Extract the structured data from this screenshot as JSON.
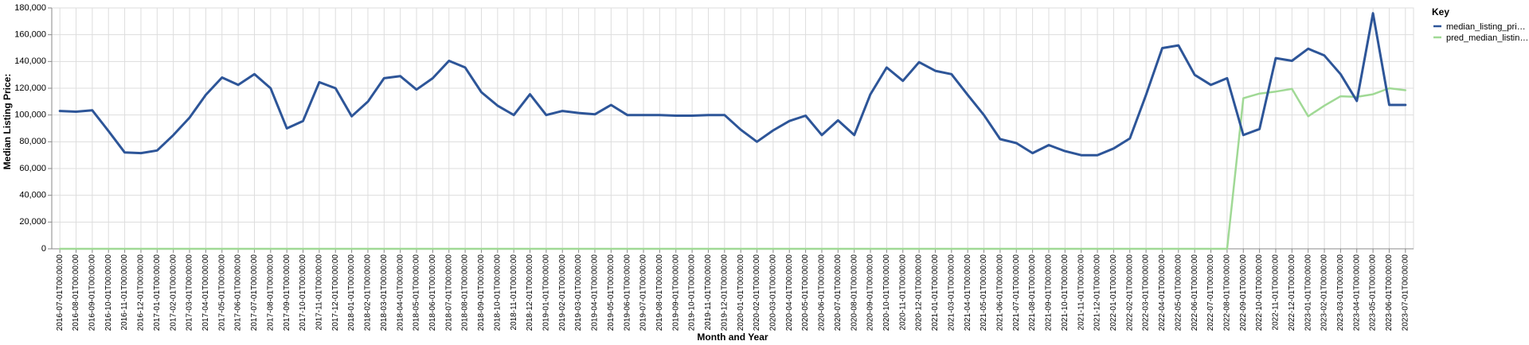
{
  "chart_data": {
    "type": "line",
    "xlabel": "Month and Year",
    "ylabel": "Median Listing Price:",
    "ylim": [
      0,
      180000
    ],
    "y_ticks": [
      0,
      20000,
      40000,
      60000,
      80000,
      100000,
      120000,
      140000,
      160000,
      180000
    ],
    "y_tick_labels": [
      "0",
      "20,000",
      "40,000",
      "60,000",
      "80,000",
      "100,000",
      "120,000",
      "140,000",
      "160,000",
      "180,000"
    ],
    "grid": true,
    "legend": {
      "title": "Key",
      "placement": "top-right"
    },
    "categories": [
      "2016-07-01T00:00:00",
      "2016-08-01T00:00:00",
      "2016-09-01T00:00:00",
      "2016-10-01T00:00:00",
      "2016-11-01T00:00:00",
      "2016-12-01T00:00:00",
      "2017-01-01T00:00:00",
      "2017-02-01T00:00:00",
      "2017-03-01T00:00:00",
      "2017-04-01T00:00:00",
      "2017-05-01T00:00:00",
      "2017-06-01T00:00:00",
      "2017-07-01T00:00:00",
      "2017-08-01T00:00:00",
      "2017-09-01T00:00:00",
      "2017-10-01T00:00:00",
      "2017-11-01T00:00:00",
      "2017-12-01T00:00:00",
      "2018-01-01T00:00:00",
      "2018-02-01T00:00:00",
      "2018-03-01T00:00:00",
      "2018-04-01T00:00:00",
      "2018-05-01T00:00:00",
      "2018-06-01T00:00:00",
      "2018-07-01T00:00:00",
      "2018-08-01T00:00:00",
      "2018-09-01T00:00:00",
      "2018-10-01T00:00:00",
      "2018-11-01T00:00:00",
      "2018-12-01T00:00:00",
      "2019-01-01T00:00:00",
      "2019-02-01T00:00:00",
      "2019-03-01T00:00:00",
      "2019-04-01T00:00:00",
      "2019-05-01T00:00:00",
      "2019-06-01T00:00:00",
      "2019-07-01T00:00:00",
      "2019-08-01T00:00:00",
      "2019-09-01T00:00:00",
      "2019-10-01T00:00:00",
      "2019-11-01T00:00:00",
      "2019-12-01T00:00:00",
      "2020-01-01T00:00:00",
      "2020-02-01T00:00:00",
      "2020-03-01T00:00:00",
      "2020-04-01T00:00:00",
      "2020-05-01T00:00:00",
      "2020-06-01T00:00:00",
      "2020-07-01T00:00:00",
      "2020-08-01T00:00:00",
      "2020-09-01T00:00:00",
      "2020-10-01T00:00:00",
      "2020-11-01T00:00:00",
      "2020-12-01T00:00:00",
      "2021-01-01T00:00:00",
      "2021-03-01T00:00:00",
      "2021-04-01T00:00:00",
      "2021-05-01T00:00:00",
      "2021-06-01T00:00:00",
      "2021-07-01T00:00:00",
      "2021-08-01T00:00:00",
      "2021-09-01T00:00:00",
      "2021-10-01T00:00:00",
      "2021-11-01T00:00:00",
      "2021-12-01T00:00:00",
      "2022-01-01T00:00:00",
      "2022-02-01T00:00:00",
      "2022-03-01T00:00:00",
      "2022-04-01T00:00:00",
      "2022-05-01T00:00:00",
      "2022-06-01T00:00:00",
      "2022-07-01T00:00:00",
      "2022-08-01T00:00:00",
      "2022-09-01T00:00:00",
      "2022-10-01T00:00:00",
      "2022-11-01T00:00:00",
      "2022-12-01T00:00:00",
      "2023-01-01T00:00:00",
      "2023-02-01T00:00:00",
      "2023-03-01T00:00:00",
      "2023-04-01T00:00:00",
      "2023-05-01T00:00:00",
      "2023-06-01T00:00:00",
      "2023-07-01T00:00:00"
    ],
    "series": [
      {
        "name": "median_listing_pri…",
        "color": "#2d5598",
        "values": [
          103000,
          102500,
          103500,
          88000,
          72000,
          71500,
          73500,
          85000,
          98000,
          115000,
          128000,
          122500,
          130500,
          120000,
          90000,
          95500,
          124500,
          120000,
          99000,
          110000,
          127500,
          129000,
          119000,
          127500,
          140500,
          135500,
          117000,
          107000,
          100000,
          115500,
          100000,
          103000,
          101500,
          100500,
          107500,
          100000,
          100000,
          100000,
          99500,
          99500,
          100000,
          100000,
          89000,
          80000,
          88500,
          95500,
          99500,
          85000,
          96000,
          85000,
          115500,
          135500,
          125500,
          139500,
          133000,
          130500,
          115000,
          100000,
          82000,
          79000,
          71500,
          77500,
          73000,
          70000,
          70000,
          75000,
          82500,
          115000,
          150000,
          152000,
          130000,
          122500,
          127500,
          85000,
          89500,
          142500,
          140500,
          149500,
          144500,
          130500,
          110500,
          176000,
          107500,
          107500
        ]
      },
      {
        "name": "pred_median_listin…",
        "color": "#a0d995",
        "values": [
          0,
          0,
          0,
          0,
          0,
          0,
          0,
          0,
          0,
          0,
          0,
          0,
          0,
          0,
          0,
          0,
          0,
          0,
          0,
          0,
          0,
          0,
          0,
          0,
          0,
          0,
          0,
          0,
          0,
          0,
          0,
          0,
          0,
          0,
          0,
          0,
          0,
          0,
          0,
          0,
          0,
          0,
          0,
          0,
          0,
          0,
          0,
          0,
          0,
          0,
          0,
          0,
          0,
          0,
          0,
          0,
          0,
          0,
          0,
          0,
          0,
          0,
          0,
          0,
          0,
          0,
          0,
          0,
          0,
          0,
          0,
          0,
          0,
          112500,
          116000,
          117500,
          119500,
          99000,
          107000,
          114000,
          113500,
          115500,
          120000,
          118500
        ]
      }
    ]
  }
}
